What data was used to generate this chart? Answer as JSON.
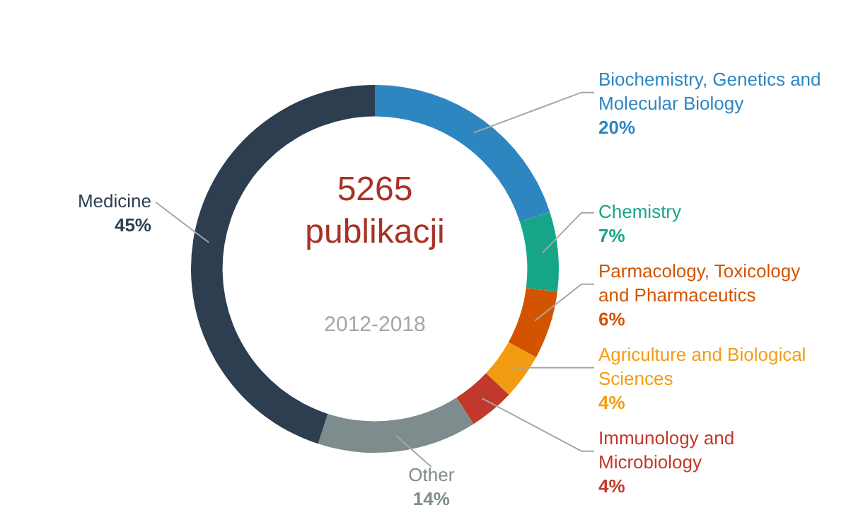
{
  "chart_data": {
    "type": "donut",
    "title": "5265 publikacji",
    "subtitle": "2012-2018",
    "categories": [
      "Biochemistry, Genetics and Molecular Biology",
      "Chemistry",
      "Parmacology, Toxicology and Pharmaceutics",
      "Agriculture and Biological Sciences",
      "Immunology and Microbiology",
      "Other",
      "Medicine"
    ],
    "values": [
      20,
      7,
      6,
      4,
      4,
      14,
      45
    ],
    "value_labels": [
      "20%",
      "7%",
      "6%",
      "4%",
      "4%",
      "14%",
      "45%"
    ],
    "colors": [
      "#2e86c1",
      "#17a589",
      "#d35400",
      "#f39c12",
      "#c0392b",
      "#7f8c8d",
      "#2c3e50"
    ],
    "legend": false
  }
}
